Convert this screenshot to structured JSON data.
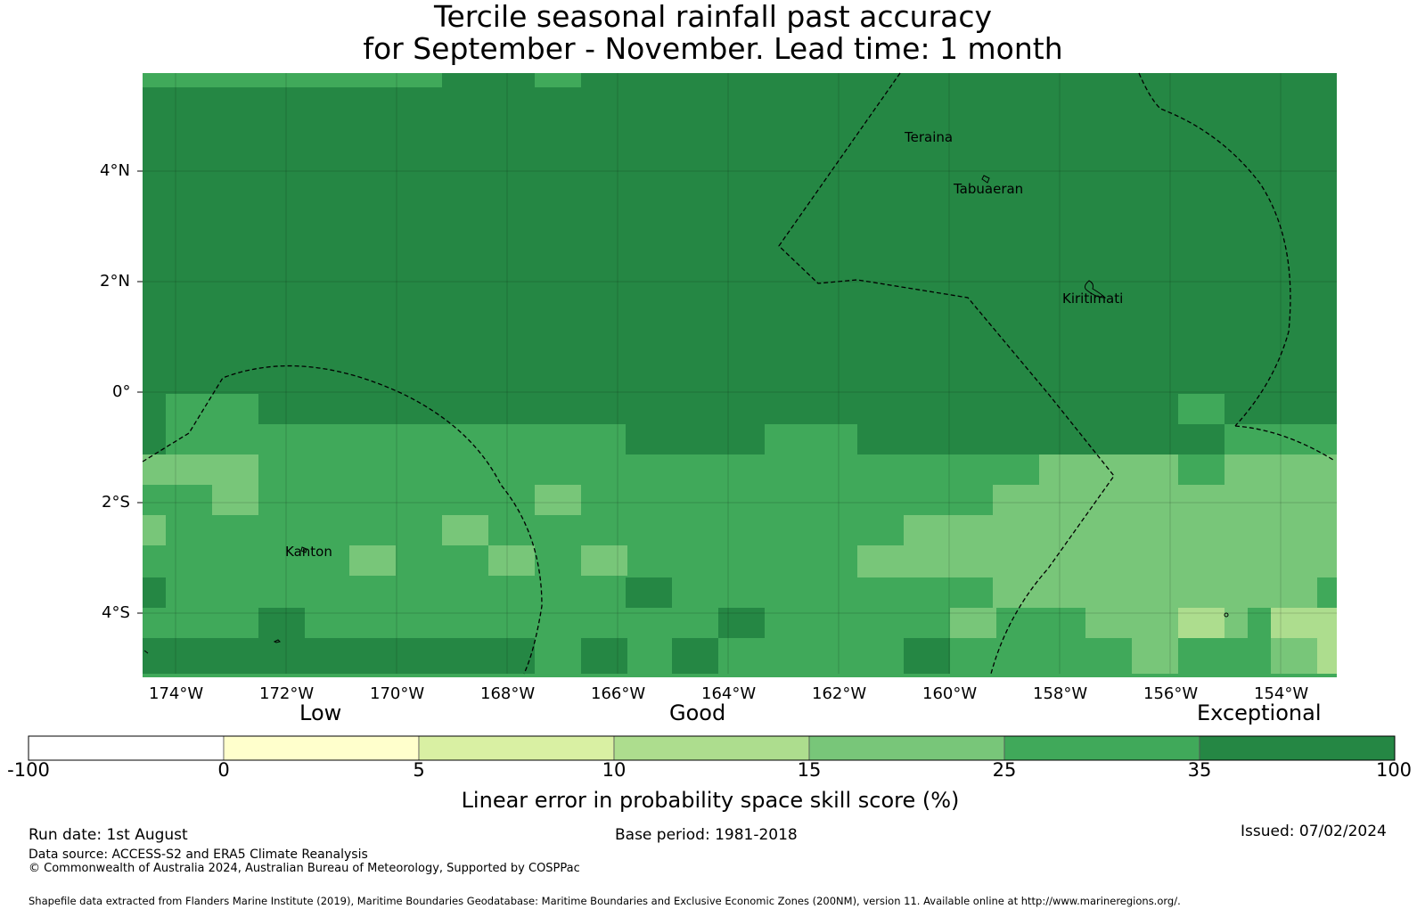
{
  "title_line1": "Tercile seasonal rainfall past accuracy",
  "title_line2": "for September - November. Lead time: 1 month",
  "map": {
    "lat_labels": [
      "4°N",
      "2°N",
      "0°",
      "2°S",
      "4°S"
    ],
    "lon_labels": [
      "174°W",
      "172°W",
      "170°W",
      "168°W",
      "166°W",
      "164°W",
      "162°W",
      "160°W",
      "158°W",
      "156°W",
      "154°W"
    ],
    "places": [
      "Teraina",
      "Tabuaeran",
      "Kiritimati",
      "Kanton"
    ],
    "colors": {
      "c25": "#40a95a",
      "c35": "#258744",
      "c15": "#78c679",
      "c10": "#addd8e",
      "c5": "#d9f0a3",
      "c0": "#ffffcc",
      "cneg": "#ffffff"
    }
  },
  "colorbar": {
    "category_labels": [
      "Low",
      "Good",
      "Exceptional"
    ],
    "ticks": [
      "-100",
      "0",
      "5",
      "10",
      "15",
      "25",
      "35",
      "100"
    ],
    "colors": [
      "#ffffff",
      "#ffffcc",
      "#d9f0a3",
      "#addd8e",
      "#78c679",
      "#40a95a",
      "#258744"
    ],
    "label": "Linear error in probability space skill score (%)"
  },
  "footer": {
    "run_date": "Run date: 1st August",
    "base_period": "Base period: 1981-2018",
    "issued": "Issued: 07/02/2024",
    "data_source": "Data source: ACCESS-S2 and ERA5 Climate Reanalysis",
    "copyright": "© Commonwealth of Australia 2024, Australian Bureau of Meteorology, Supported by COSPPac",
    "shapefile": "Shapefile data extracted from Flanders Marine Institute (2019), Maritime Boundaries Geodatabase: Maritime Boundaries and Exclusive Economic Zones (200NM), version 11. Available online at http://www.marineregions.org/."
  }
}
